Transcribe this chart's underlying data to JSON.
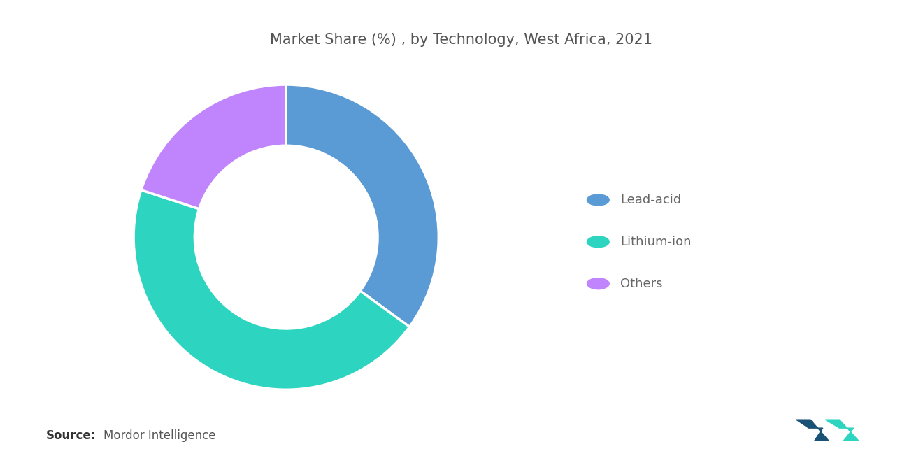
{
  "title": "Market Share (%) , by Technology, West Africa, 2021",
  "labels": [
    "Lead-acid",
    "Lithium-ion",
    "Others"
  ],
  "values": [
    35,
    45,
    20
  ],
  "colors": [
    "#5B9BD5",
    "#2DD4BF",
    "#C084FC"
  ],
  "source_bold": "Source:",
  "source_text": "Mordor Intelligence",
  "background_color": "#FFFFFF",
  "title_color": "#555555",
  "legend_text_color": "#666666",
  "title_fontsize": 15,
  "legend_fontsize": 13,
  "source_fontsize": 12,
  "donut_width": 0.4,
  "startangle": 90
}
